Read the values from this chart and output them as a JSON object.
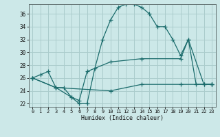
{
  "xlabel": "Humidex (Indice chaleur)",
  "ylabel": "",
  "bg_color": "#cce8e8",
  "grid_color": "#aacccc",
  "line_color": "#1a6b6b",
  "xlim": [
    -0.5,
    23.5
  ],
  "ylim": [
    21.5,
    37.5
  ],
  "xticks": [
    0,
    1,
    2,
    3,
    4,
    5,
    6,
    7,
    8,
    9,
    10,
    11,
    12,
    13,
    14,
    15,
    16,
    17,
    18,
    19,
    20,
    21,
    22,
    23
  ],
  "yticks": [
    22,
    24,
    26,
    28,
    30,
    32,
    34,
    36
  ],
  "line1_x": [
    0,
    1,
    2,
    3,
    4,
    5,
    6,
    7,
    8,
    9,
    10,
    11,
    12,
    13,
    14,
    15,
    16,
    17,
    18,
    19,
    20,
    21,
    22,
    23
  ],
  "line1_y": [
    26,
    26.5,
    27,
    24.5,
    24.5,
    23,
    22,
    22,
    27.5,
    32,
    35,
    37,
    37.5,
    37.5,
    37,
    36,
    34,
    34,
    32,
    29.5,
    32,
    25,
    25,
    25
  ],
  "line2_x": [
    0,
    3,
    5,
    6,
    7,
    10,
    14,
    19,
    20,
    22,
    23
  ],
  "line2_y": [
    26,
    24.5,
    23,
    22.5,
    27,
    28.5,
    29,
    29,
    32,
    25,
    25
  ],
  "line3_x": [
    0,
    3,
    10,
    14,
    19,
    23
  ],
  "line3_y": [
    26,
    24.5,
    24,
    25,
    25,
    25
  ],
  "line_width": 0.9,
  "marker_size": 4
}
